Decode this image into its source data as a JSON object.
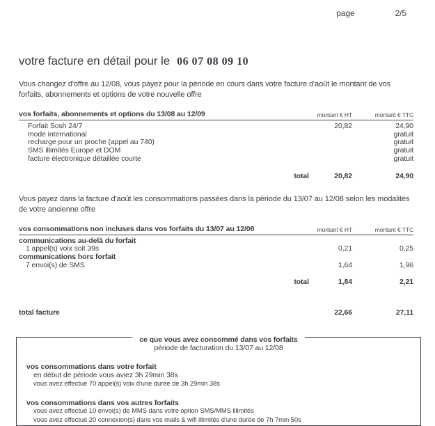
{
  "header": {
    "page_label": "page",
    "page_number": "2/5"
  },
  "title": {
    "text": "votre facture en détail pour le",
    "phone_number": "06 07 08 09 10"
  },
  "intro1": "Vous changez d'offre au 12/08, vous payez pour la période en cours dans votre facture d'août le montant de vos forfaits, abonnements et options de votre nouvelle offre",
  "intro2": "Vous payez dans la facture d'août les consommations passées dans la période du 13/07 au 12/08 selon les modalités de votre ancienne offre",
  "table1": {
    "header": "vos forfaits, abonnements et options du 13/08 au 12/09",
    "col_ht": "montant € HT",
    "col_ttc": "montant € TTC",
    "rows": [
      {
        "label": "Forfait Sosh 24/7",
        "ht": "20,82",
        "ttc": "24,90"
      },
      {
        "label": "mode international",
        "ht": "",
        "ttc": "gratuit"
      },
      {
        "label": "recharge pour un proche (appel au 740)",
        "ht": "",
        "ttc": "gratuit"
      },
      {
        "label": "SMS illimités Europe et DOM",
        "ht": "",
        "ttc": "gratuit"
      },
      {
        "label": "facture électronique détaillée courte",
        "ht": "",
        "ttc": "gratuit"
      }
    ],
    "total_label": "total",
    "total_ht": "20,82",
    "total_ttc": "24,90"
  },
  "table2": {
    "header": "vos consommations non incluses dans vos forfaits du 13/07 au 12/08",
    "col_ht": "montant € HT",
    "col_ttc": "montant € TTC",
    "rows": [
      {
        "label": "communications au-delà du forfait",
        "bold": true,
        "ht": "",
        "ttc": ""
      },
      {
        "label": "1 appel(s) voix soit 39s",
        "indent": true,
        "ht": "0,21",
        "ttc": "0,25"
      },
      {
        "label": "communications hors forfait",
        "bold": true,
        "ht": "",
        "ttc": ""
      },
      {
        "label": "7 envoi(s) de SMS",
        "indent": true,
        "ht": "1,64",
        "ttc": "1,96"
      }
    ],
    "total_label": "total",
    "total_ht": "1,84",
    "total_ttc": "2,21"
  },
  "total_facture": {
    "label": "total facture",
    "ht": "22,66",
    "ttc": "27,11"
  },
  "summary_box": {
    "title": "ce que vous avez consommé dans vos forfaits",
    "subtitle": "période de facturation du 13/07 au 12/08",
    "sections": [
      {
        "heading": "vos consommations dans votre forfait",
        "lines": [
          {
            "text": "en début de période vous aviez 3h 29min 38s",
            "size": "medium"
          },
          {
            "text": "vous avez effectué 70 appel(s) voix d'une durée de 3h 29min 38s",
            "size": "small"
          }
        ]
      },
      {
        "heading": "vos consommations dans vos autres forfaits",
        "lines": [
          {
            "text": "vous avez effectué 10 envoi(s) de MMS dans votre option SMS/MMS illimités",
            "size": "small"
          },
          {
            "text": "vous avez effectué 20 connexion(s) dans vos mails & wifi illimités d'une durée de 7h 7min 50s",
            "size": "small"
          }
        ]
      }
    ]
  }
}
